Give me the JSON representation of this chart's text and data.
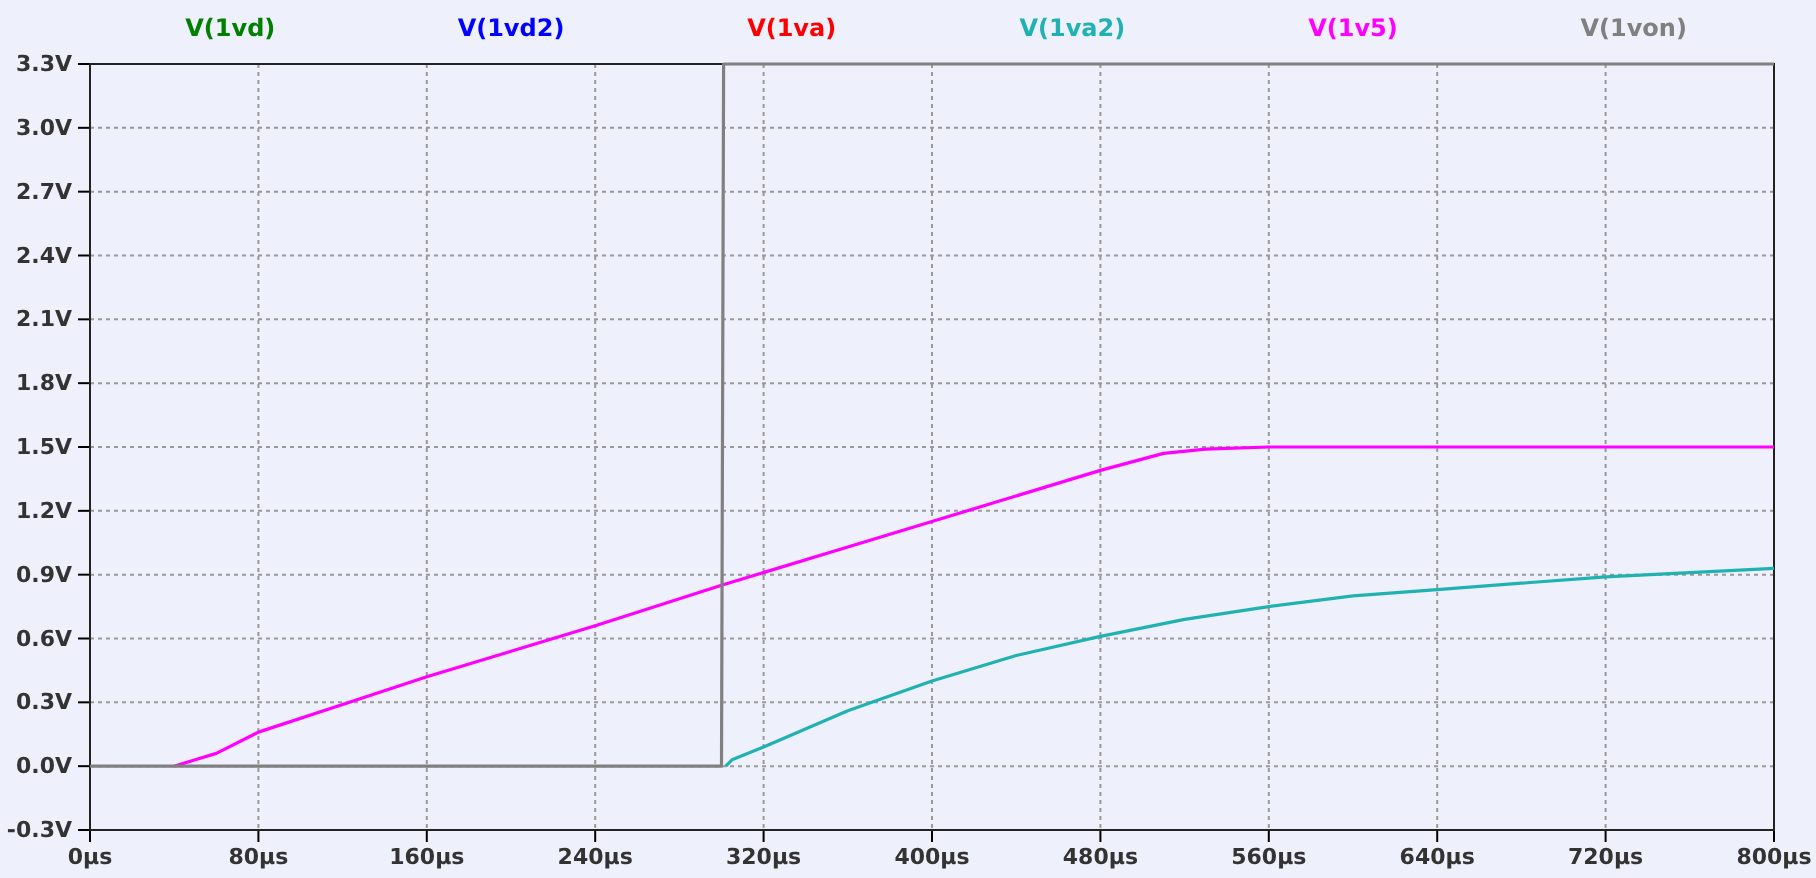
{
  "chart_data": {
    "type": "line",
    "legend": "top",
    "grid": true,
    "marker": "none",
    "line_style": "solid",
    "xlim": [
      0,
      800
    ],
    "xticks": [
      {
        "value": 0,
        "label": "0µs"
      },
      {
        "value": 80,
        "label": "80µs"
      },
      {
        "value": 160,
        "label": "160µs"
      },
      {
        "value": 240,
        "label": "240µs"
      },
      {
        "value": 320,
        "label": "320µs"
      },
      {
        "value": 400,
        "label": "400µs"
      },
      {
        "value": 480,
        "label": "480µs"
      },
      {
        "value": 560,
        "label": "560µs"
      },
      {
        "value": 640,
        "label": "640µs"
      },
      {
        "value": 720,
        "label": "720µs"
      },
      {
        "value": 800,
        "label": "800µs"
      }
    ],
    "ylim": [
      -0.3,
      3.3
    ],
    "yticks": [
      {
        "value": -0.3,
        "label": "-0.3V"
      },
      {
        "value": 0,
        "label": "0.0V"
      },
      {
        "value": 0.3,
        "label": "0.3V"
      },
      {
        "value": 0.6,
        "label": "0.6V"
      },
      {
        "value": 0.9,
        "label": "0.9V"
      },
      {
        "value": 1.2,
        "label": "1.2V"
      },
      {
        "value": 1.5,
        "label": "1.5V"
      },
      {
        "value": 1.8,
        "label": "1.8V"
      },
      {
        "value": 2.1,
        "label": "2.1V"
      },
      {
        "value": 2.4,
        "label": "2.4V"
      },
      {
        "value": 2.7,
        "label": "2.7V"
      },
      {
        "value": 3.0,
        "label": "3.0V"
      },
      {
        "value": 3.3,
        "label": "3.3V"
      }
    ],
    "series": [
      {
        "name": "V(1vd)",
        "color": "#008000"
      },
      {
        "name": "V(1vd2)",
        "color": "#0000ff"
      },
      {
        "name": "V(1va)",
        "color": "#ff0000"
      },
      {
        "name": "V(1va2)",
        "color": "#20b2b2",
        "x": [
          302,
          305,
          320,
          360,
          400,
          440,
          480,
          520,
          560,
          600,
          640,
          680,
          720,
          760,
          800
        ],
        "values": [
          0,
          0.03,
          0.09,
          0.26,
          0.4,
          0.52,
          0.61,
          0.69,
          0.75,
          0.8,
          0.83,
          0.86,
          0.89,
          0.91,
          0.93
        ]
      },
      {
        "name": "V(1v5)",
        "color": "#ff00ff",
        "x": [
          40,
          50,
          60,
          80,
          120,
          160,
          200,
          240,
          300,
          360,
          400,
          480,
          510,
          530,
          560,
          800
        ],
        "values": [
          0,
          0.03,
          0.06,
          0.16,
          0.29,
          0.42,
          0.54,
          0.66,
          0.85,
          1.03,
          1.15,
          1.39,
          1.47,
          1.49,
          1.5,
          1.5
        ]
      },
      {
        "name": "V(1von)",
        "color": "#808080",
        "x": [
          0,
          300,
          301,
          800
        ],
        "values": [
          0,
          0,
          3.3,
          3.3
        ]
      }
    ]
  }
}
